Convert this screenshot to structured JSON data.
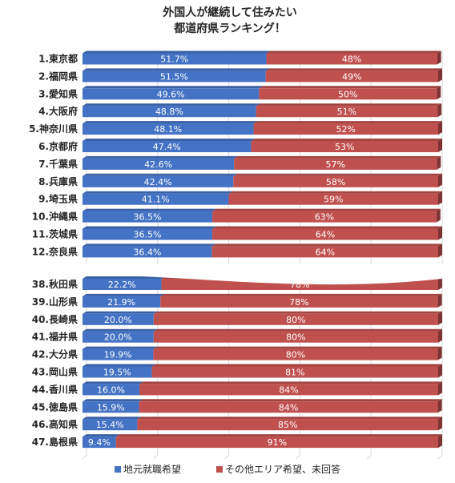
{
  "chart_data": {
    "type": "bar",
    "stacked": true,
    "orientation": "horizontal",
    "title": [
      "外国人が継続して住みたい",
      "都道府県ランキング！"
    ],
    "xlabel": "",
    "ylabel": "",
    "xlim": [
      0,
      100
    ],
    "grid": true,
    "legend_position": "bottom",
    "categories": [
      "1.東京都",
      "2.福岡県",
      "3.愛知県",
      "4.大阪府",
      "5.神奈川県",
      "6.京都府",
      "7.千葉県",
      "8.兵庫県",
      "9.埼玉県",
      "10.沖縄県",
      "11.茨城県",
      "12.奈良県",
      "38.秋田県",
      "39.山形県",
      "40.長崎県",
      "41.福井県",
      "42.大分県",
      "43.岡山県",
      "44.香川県",
      "45.徳島県",
      "46.高知県",
      "47.島根県"
    ],
    "series": [
      {
        "name": "地元就職希望",
        "color": "#4472C4",
        "values": [
          51.7,
          51.5,
          49.6,
          48.8,
          48.1,
          47.4,
          42.6,
          42.4,
          41.1,
          36.5,
          36.5,
          36.4,
          22.2,
          21.9,
          20.0,
          20.0,
          19.9,
          19.5,
          16.0,
          15.9,
          15.4,
          9.4
        ],
        "labels": [
          "51.7%",
          "51.5%",
          "49.6%",
          "48.8%",
          "48.1%",
          "47.4%",
          "42.6%",
          "42.4%",
          "41.1%",
          "36.5%",
          "36.5%",
          "36.4%",
          "22.2%",
          "21.9%",
          "20.0%",
          "20.0%",
          "19.9%",
          "19.5%",
          "16.0%",
          "15.9%",
          "15.4%",
          "9.4%"
        ]
      },
      {
        "name": "その他エリア希望、未回答",
        "color": "#C0504D",
        "values": [
          48,
          49,
          50,
          51,
          52,
          53,
          57,
          58,
          59,
          63,
          64,
          64,
          78,
          78,
          80,
          80,
          80,
          81,
          84,
          84,
          85,
          91
        ],
        "labels": [
          "48%",
          "49%",
          "50%",
          "51%",
          "52%",
          "53%",
          "57%",
          "58%",
          "59%",
          "63%",
          "64%",
          "64%",
          "78%",
          "78%",
          "80%",
          "80%",
          "80%",
          "81%",
          "84%",
          "84%",
          "85%",
          "91%"
        ]
      }
    ]
  }
}
